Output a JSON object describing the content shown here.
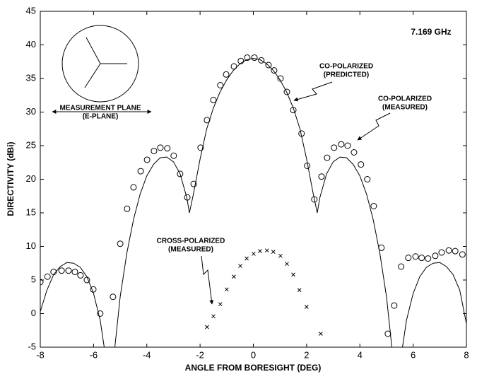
{
  "chart_data": {
    "type": "antenna-pattern",
    "xlabel": "ANGLE FROM BORESIGHT (DEG)",
    "ylabel": "DIRECTIVITY (dBi)",
    "xlim": [
      -8,
      8
    ],
    "ylim": [
      -5,
      45
    ],
    "xticks": [
      -8,
      -6,
      -4,
      -2,
      0,
      2,
      4,
      6,
      8
    ],
    "yticks": [
      -5,
      0,
      5,
      10,
      15,
      20,
      25,
      30,
      35,
      40,
      45
    ],
    "annotations": {
      "frequency": "7.169 GHz",
      "plane": [
        "MEASUREMENT PLANE",
        "(E-PLANE)"
      ]
    },
    "series": [
      {
        "name": [
          "CO-POLARIZED",
          "(PREDICTED)"
        ],
        "style": "line",
        "color": "#000000",
        "x": [
          -8,
          -7.75,
          -7.5,
          -7.25,
          -7,
          -6.75,
          -6.5,
          -6.25,
          -6,
          -5.75,
          -5.6,
          -5.4,
          -5.2,
          -5,
          -4.75,
          -4.5,
          -4.25,
          -4,
          -3.75,
          -3.5,
          -3.25,
          -3,
          -2.75,
          -2.5,
          -2.4,
          -2.25,
          -2,
          -1.75,
          -1.5,
          -1.25,
          -1,
          -0.75,
          -0.5,
          -0.25,
          0,
          0.25,
          0.5,
          0.75,
          1,
          1.25,
          1.5,
          1.75,
          2,
          2.25,
          2.4,
          2.5,
          2.75,
          3,
          3.25,
          3.5,
          3.75,
          4,
          4.25,
          4.5,
          4.75,
          5,
          5.2,
          5.4,
          5.6,
          5.75,
          6,
          6.25,
          6.5,
          6.75,
          7,
          7.25,
          7.5,
          7.75,
          8
        ],
        "values": [
          0.3,
          3.5,
          5.8,
          7,
          7.6,
          7.5,
          6.9,
          5.5,
          3,
          -1,
          -5,
          -12,
          -5,
          2.5,
          9,
          14,
          17.8,
          20.5,
          22.2,
          23.2,
          23.3,
          22.6,
          20.8,
          17.3,
          15,
          17.8,
          23,
          27.5,
          30.6,
          33,
          34.8,
          36.2,
          37.2,
          37.8,
          38,
          37.8,
          37.2,
          36.2,
          34.8,
          33,
          30.6,
          27.5,
          23,
          17.8,
          15,
          17.3,
          20.8,
          22.6,
          23.3,
          23.2,
          22.2,
          20.5,
          17.8,
          14,
          9,
          2.5,
          -5,
          -12,
          -5,
          -1,
          3,
          5.5,
          6.9,
          7.5,
          7.6,
          7,
          5.8,
          3.5,
          -1.5
        ]
      },
      {
        "name": [
          "CO-POLARIZED",
          "(MEASURED)"
        ],
        "style": "circle",
        "color": "#000000",
        "x": [
          -8,
          -7.73,
          -7.5,
          -7.2,
          -6.94,
          -6.7,
          -6.49,
          -6.25,
          -6.01,
          -5.75,
          -5.27,
          -5,
          -4.74,
          -4.5,
          -4.23,
          -3.99,
          -3.73,
          -3.49,
          -3.23,
          -2.99,
          -2.75,
          -2.48,
          -2.24,
          -1.98,
          -1.74,
          -1.5,
          -1.24,
          -1.02,
          -0.73,
          -0.47,
          -0.23,
          0.04,
          0.3,
          0.57,
          0.78,
          1.02,
          1.26,
          1.5,
          1.81,
          2.02,
          2.29,
          2.56,
          2.77,
          3.03,
          3.3,
          3.54,
          3.78,
          4.04,
          4.28,
          4.52,
          4.81,
          5.05,
          5.29,
          5.55,
          5.82,
          6.09,
          6.32,
          6.56,
          6.83,
          7.07,
          7.34,
          7.58,
          7.85
        ],
        "values": [
          4.7,
          5.5,
          6.2,
          6.4,
          6.4,
          6.2,
          5.7,
          5,
          3.6,
          0,
          2.5,
          10.4,
          15.6,
          18.8,
          21.2,
          22.9,
          24.2,
          24.7,
          24.6,
          23.5,
          20.8,
          17.3,
          19.3,
          24.7,
          28.8,
          31.8,
          34,
          35.6,
          36.8,
          37.6,
          38.1,
          38.1,
          37.7,
          37,
          36.2,
          35,
          33,
          30.3,
          26.8,
          22,
          17,
          20.4,
          23.2,
          24.7,
          25.2,
          25,
          24,
          22.2,
          20,
          16,
          9.8,
          -3,
          1.2,
          7,
          8.3,
          8.5,
          8.3,
          8.2,
          8.6,
          9.1,
          9.4,
          9.3,
          8.8
        ]
      },
      {
        "name": [
          "CROSS-POLARIZED",
          "(MEASURED)"
        ],
        "style": "x",
        "color": "#000000",
        "x": [
          -1.74,
          -1.5,
          -1.24,
          -1,
          -0.73,
          -0.49,
          -0.25,
          0.01,
          0.25,
          0.51,
          0.75,
          1.02,
          1.26,
          1.5,
          1.73,
          2,
          2.53
        ],
        "values": [
          -2,
          -0.4,
          1.4,
          3.6,
          5.5,
          7.1,
          8.2,
          8.9,
          9.3,
          9.4,
          9.2,
          8.6,
          7.4,
          5.8,
          3.5,
          1,
          -3
        ]
      }
    ]
  }
}
